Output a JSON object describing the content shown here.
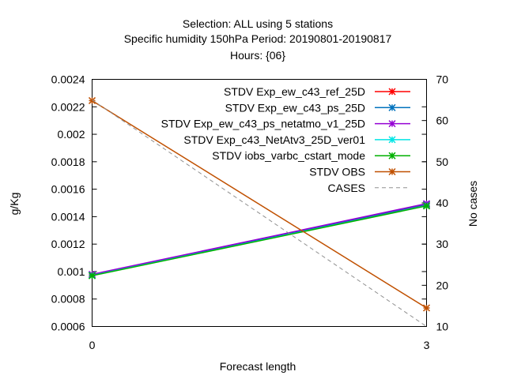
{
  "chart_data": {
    "type": "line",
    "title_lines": [
      "Selection: ALL using     5 stations",
      "Specific humidity 150hPa   Period: 20190801-20190817",
      "Hours: {06}"
    ],
    "xlabel": "Forecast length",
    "ylabel": "g/Kg",
    "y2label": "No cases",
    "x": [
      0,
      3
    ],
    "xticks": [
      "0",
      "3"
    ],
    "xlim": [
      0,
      3
    ],
    "ylim": [
      0.0006,
      0.0024
    ],
    "yticks": [
      "0.0006",
      "0.0008",
      "0.001",
      "0.0012",
      "0.0014",
      "0.0016",
      "0.0018",
      "0.002",
      "0.0022",
      "0.0024"
    ],
    "y2lim": [
      10,
      70
    ],
    "y2ticks": [
      "10",
      "20",
      "30",
      "40",
      "50",
      "60",
      "70"
    ],
    "legend_position": "top-right",
    "grid": false,
    "series": [
      {
        "name": "STDV Exp_ew_c43_ref_25D",
        "color": "#ff0000",
        "marker": "x",
        "values": [
          0.000975,
          0.001485
        ]
      },
      {
        "name": "STDV Exp_ew_c43_ps_25D",
        "color": "#0072bd",
        "marker": "x",
        "values": [
          0.000975,
          0.00149
        ]
      },
      {
        "name": "STDV Exp_ew_c43_ps_netatmo_v1_25D",
        "color": "#9400d3",
        "marker": "x",
        "values": [
          0.00098,
          0.001495
        ]
      },
      {
        "name": "STDV Exp_c43_NetAtv3_25D_ver01",
        "color": "#00e5e5",
        "marker": "x",
        "values": [
          0.000972,
          0.00148
        ]
      },
      {
        "name": "STDV iobs_varbc_cstart_mode",
        "color": "#00b000",
        "marker": "x",
        "values": [
          0.00097,
          0.001478
        ]
      },
      {
        "name": "STDV OBS",
        "color": "#c05000",
        "marker": "x",
        "values": [
          0.002245,
          0.000735
        ]
      }
    ],
    "cases": {
      "name": "CASES",
      "color": "#909090",
      "axis": "y2",
      "values": [
        65,
        10
      ]
    }
  }
}
